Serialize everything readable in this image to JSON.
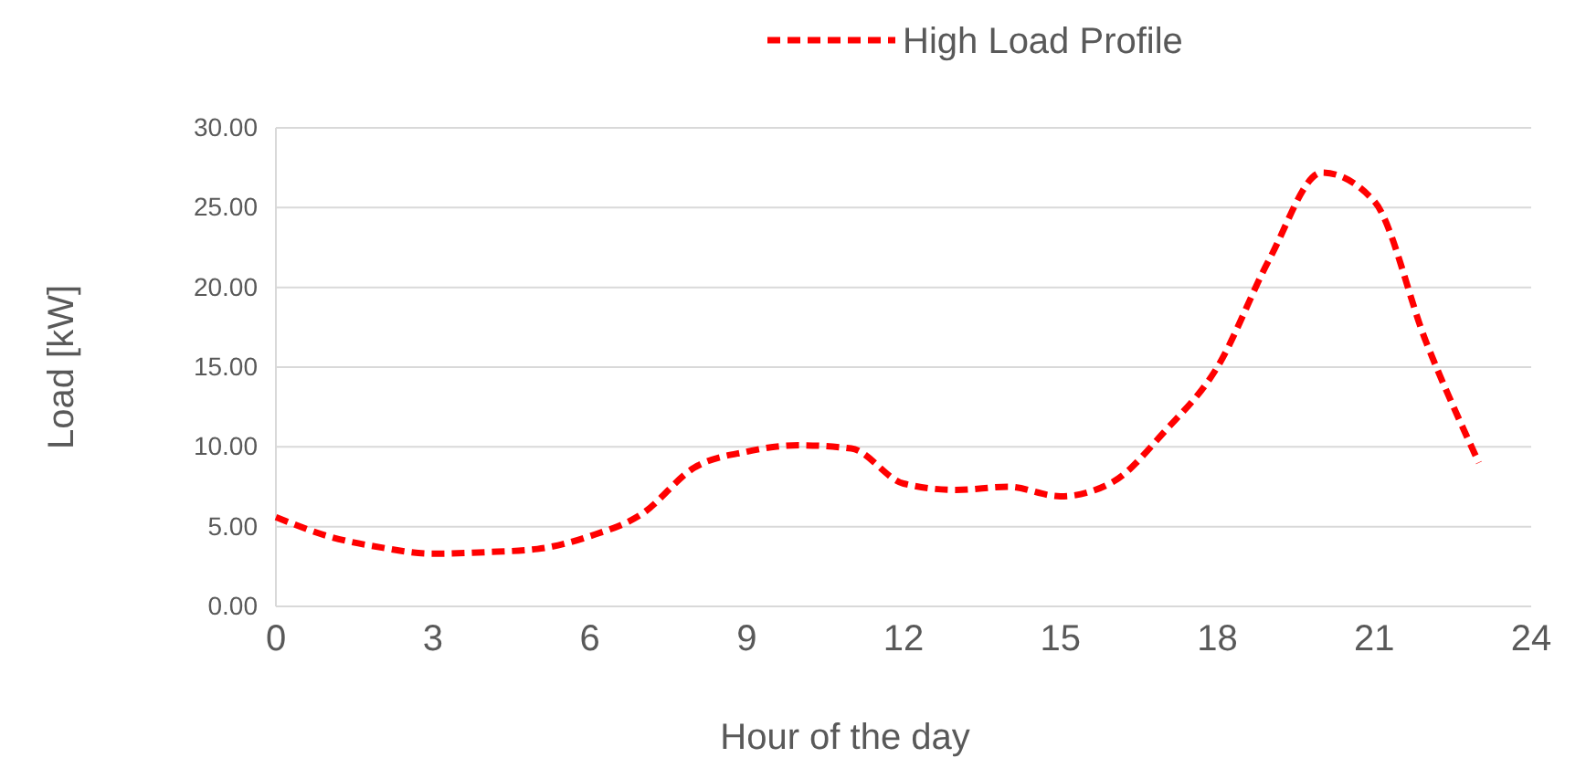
{
  "chart_data": {
    "type": "line",
    "xlabel": "Hour of the day",
    "ylabel": "Load [kW]",
    "x": [
      0,
      1,
      2,
      3,
      4,
      5,
      6,
      7,
      8,
      9,
      10,
      11,
      12,
      13,
      14,
      15,
      16,
      17,
      18,
      19,
      20,
      21,
      22,
      23
    ],
    "series": [
      {
        "name": "High Load Profile",
        "color": "#ff0000",
        "values": [
          5.6,
          4.4,
          3.7,
          3.3,
          3.4,
          3.6,
          4.4,
          5.8,
          8.7,
          9.7,
          10.1,
          9.9,
          7.7,
          7.3,
          7.5,
          6.9,
          7.8,
          11.0,
          15.0,
          21.8,
          27.2,
          25.4,
          16.5,
          9.0
        ]
      }
    ],
    "xlim": [
      0,
      24
    ],
    "xticks": [
      0,
      3,
      6,
      9,
      12,
      15,
      18,
      21,
      24
    ],
    "ylim": [
      0,
      30
    ],
    "yticks": [
      {
        "value": 0,
        "label": "0.00"
      },
      {
        "value": 5,
        "label": "5.00"
      },
      {
        "value": 10,
        "label": "10.00"
      },
      {
        "value": 15,
        "label": "15.00"
      },
      {
        "value": 20,
        "label": "20.00"
      },
      {
        "value": 25,
        "label": "25.00"
      },
      {
        "value": 30,
        "label": "30.00"
      }
    ],
    "grid": "y",
    "legend": "top",
    "line_style": "dashed",
    "marker": "none"
  }
}
